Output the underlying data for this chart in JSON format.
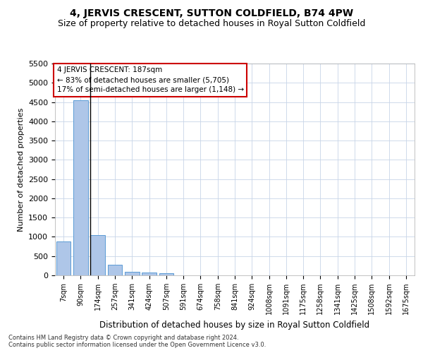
{
  "title": "4, JERVIS CRESCENT, SUTTON COLDFIELD, B74 4PW",
  "subtitle": "Size of property relative to detached houses in Royal Sutton Coldfield",
  "xlabel": "Distribution of detached houses by size in Royal Sutton Coldfield",
  "ylabel": "Number of detached properties",
  "footnote1": "Contains HM Land Registry data © Crown copyright and database right 2024.",
  "footnote2": "Contains public sector information licensed under the Open Government Licence v3.0.",
  "categories": [
    "7sqm",
    "90sqm",
    "174sqm",
    "257sqm",
    "341sqm",
    "424sqm",
    "507sqm",
    "591sqm",
    "674sqm",
    "758sqm",
    "841sqm",
    "924sqm",
    "1008sqm",
    "1091sqm",
    "1175sqm",
    "1258sqm",
    "1341sqm",
    "1425sqm",
    "1508sqm",
    "1592sqm",
    "1675sqm"
  ],
  "values": [
    880,
    4550,
    1050,
    275,
    90,
    75,
    50,
    0,
    0,
    0,
    0,
    0,
    0,
    0,
    0,
    0,
    0,
    0,
    0,
    0,
    0
  ],
  "bar_color": "#aec6e8",
  "bar_edge_color": "#5b9bd5",
  "vline_x_index": 2,
  "vline_color": "#000000",
  "ylim": [
    0,
    5500
  ],
  "yticks": [
    0,
    500,
    1000,
    1500,
    2000,
    2500,
    3000,
    3500,
    4000,
    4500,
    5000,
    5500
  ],
  "annotation_text": "4 JERVIS CRESCENT: 187sqm\n← 83% of detached houses are smaller (5,705)\n17% of semi-detached houses are larger (1,148) →",
  "annotation_box_color": "#ffffff",
  "annotation_box_edge_color": "#cc0000",
  "bg_color": "#ffffff",
  "grid_color": "#c8d4e8",
  "title_fontsize": 10,
  "subtitle_fontsize": 9
}
